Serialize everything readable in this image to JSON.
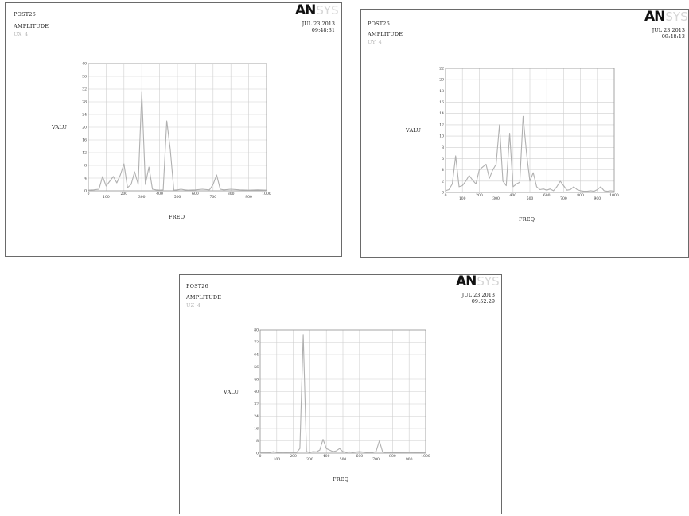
{
  "colors": {
    "frame": "#6a6a6a",
    "grid": "#cfcfcf",
    "curve": "#b0b0b0",
    "text": "#222222"
  },
  "panels": [
    {
      "program": "POST26",
      "subtitle": "AMPLITUDE",
      "tag": "UX_4",
      "logo_a": "AN",
      "logo_b": "SYS",
      "date": "JUL 23 2013",
      "time": "09:48:31"
    },
    {
      "program": "POST26",
      "subtitle": "AMPLITUDE",
      "tag": "UY_4",
      "logo_a": "AN",
      "logo_b": "SYS",
      "date": "JUL 23 2013",
      "time": "09:48:13"
    },
    {
      "program": "POST26",
      "subtitle": "AMPLITUDE",
      "tag": "UZ_4",
      "logo_a": "AN",
      "logo_b": "SYS",
      "date": "JUL 23 2013",
      "time": "09:52:29"
    }
  ],
  "chart_data": [
    {
      "type": "line",
      "xlabel": "FREQ",
      "ylabel": "VALU",
      "xlim": [
        0,
        1000
      ],
      "ylim": [
        0,
        40
      ],
      "grid": true,
      "x_ticks": [
        "0",
        "100",
        "200",
        "300",
        "400",
        "500",
        "600",
        "700",
        "800",
        "900",
        "1000"
      ],
      "y_ticks": [
        "0",
        "4",
        "8",
        "12",
        "16",
        "20",
        "24",
        "28",
        "32",
        "36",
        "40"
      ],
      "series": [
        {
          "x": [
            0,
            30,
            60,
            80,
            100,
            120,
            140,
            160,
            180,
            200,
            220,
            240,
            260,
            280,
            300,
            320,
            340,
            360,
            380,
            400,
            420,
            440,
            460,
            480,
            500,
            520,
            540,
            560,
            600,
            640,
            680,
            700,
            720,
            740,
            760,
            800,
            850,
            900,
            950,
            1000
          ],
          "y": [
            0.2,
            0.3,
            0.5,
            4.5,
            1.5,
            3,
            4.5,
            2.5,
            5,
            8.5,
            1,
            2,
            6,
            2,
            31,
            2,
            7.5,
            0.5,
            0.3,
            0.2,
            0.3,
            22,
            13,
            0.2,
            0.3,
            0.5,
            0.3,
            0.2,
            0.3,
            0.5,
            0.3,
            2,
            5,
            0.5,
            0.3,
            0.5,
            0.3,
            0.2,
            0.3,
            0.2
          ]
        }
      ]
    },
    {
      "type": "line",
      "xlabel": "FREQ",
      "ylabel": "VALU",
      "xlim": [
        0,
        1000
      ],
      "ylim": [
        0,
        22
      ],
      "grid": true,
      "x_ticks": [
        "0",
        "100",
        "200",
        "300",
        "400",
        "500",
        "600",
        "700",
        "800",
        "900",
        "1000"
      ],
      "y_ticks": [
        "0",
        "2",
        "4",
        "6",
        "8",
        "10",
        "12",
        "14",
        "16",
        "18",
        "20",
        "22"
      ],
      "series": [
        {
          "x": [
            0,
            20,
            40,
            60,
            80,
            100,
            120,
            140,
            160,
            180,
            200,
            220,
            240,
            260,
            280,
            300,
            320,
            340,
            360,
            380,
            400,
            420,
            440,
            460,
            480,
            500,
            520,
            540,
            560,
            580,
            600,
            620,
            640,
            660,
            680,
            700,
            720,
            740,
            760,
            780,
            800,
            820,
            840,
            860,
            880,
            900,
            920,
            940,
            960,
            980,
            1000
          ],
          "y": [
            0.3,
            0.5,
            1.5,
            6.5,
            1,
            1.2,
            2,
            3,
            2.2,
            1.5,
            4,
            4.5,
            5,
            2.5,
            4,
            5,
            12,
            2,
            1.2,
            10.5,
            1,
            1.5,
            1.8,
            13.5,
            7,
            2,
            3.5,
            1,
            0.5,
            0.6,
            0.4,
            0.6,
            0.3,
            1,
            2,
            1.2,
            0.4,
            0.5,
            1,
            0.5,
            0.3,
            0.2,
            0.2,
            0.3,
            0.2,
            0.5,
            1,
            0.3,
            0.2,
            0.3,
            0.2
          ]
        }
      ]
    },
    {
      "type": "line",
      "xlabel": "FREQ",
      "ylabel": "VALU",
      "xlim": [
        0,
        1000
      ],
      "ylim": [
        0,
        80
      ],
      "grid": true,
      "x_ticks": [
        "0",
        "100",
        "200",
        "300",
        "400",
        "500",
        "600",
        "700",
        "800",
        "900",
        "1000"
      ],
      "y_ticks": [
        "0",
        "8",
        "16",
        "24",
        "32",
        "40",
        "48",
        "56",
        "64",
        "72",
        "80"
      ],
      "series": [
        {
          "x": [
            0,
            40,
            60,
            80,
            100,
            140,
            160,
            180,
            200,
            220,
            240,
            260,
            280,
            300,
            320,
            340,
            360,
            380,
            400,
            440,
            460,
            480,
            500,
            520,
            540,
            560,
            600,
            640,
            660,
            680,
            700,
            720,
            740,
            760,
            800,
            850,
            900,
            950,
            1000
          ],
          "y": [
            0.2,
            0.3,
            0.5,
            1,
            0.5,
            0.3,
            0.5,
            0.3,
            0.5,
            0.4,
            3,
            77,
            1,
            0.5,
            1,
            0.8,
            2,
            9,
            3,
            1,
            1.5,
            3,
            1,
            0.5,
            0.8,
            0.5,
            1,
            0.5,
            0.3,
            0.5,
            1,
            8,
            0.8,
            0.3,
            0.5,
            0.4,
            0.3,
            0.5,
            0.2
          ]
        }
      ]
    }
  ]
}
